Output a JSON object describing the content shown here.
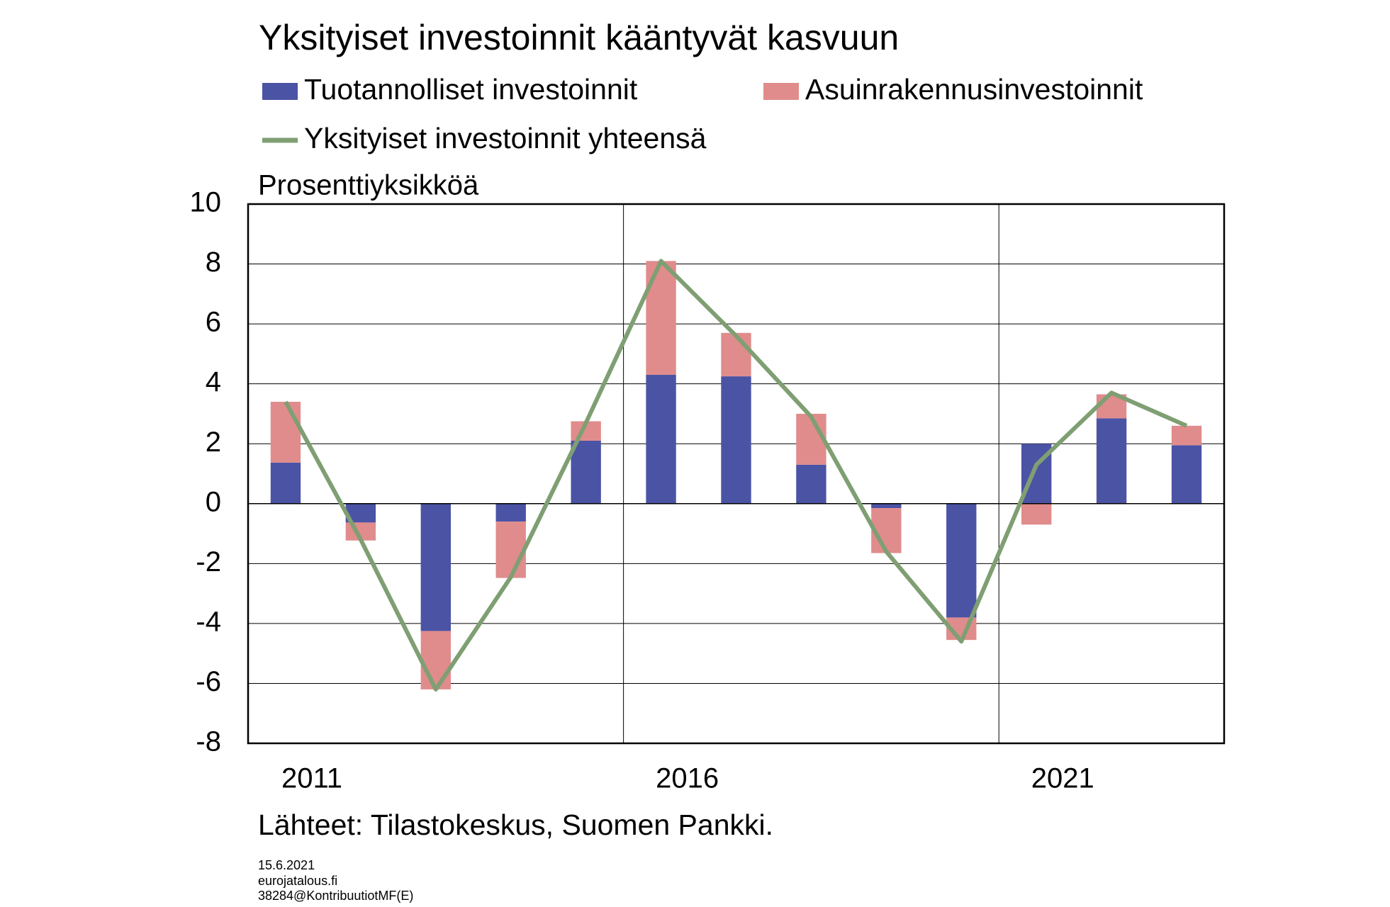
{
  "chart_data": {
    "type": "bar",
    "stacked": true,
    "title": "Yksityiset investoinnit kääntyvät kasvuun",
    "y_label": "Prosenttiyksikköä",
    "categories": [
      "2011",
      null,
      null,
      null,
      null,
      "2016",
      null,
      null,
      null,
      null,
      "2021",
      null,
      null
    ],
    "series": [
      {
        "name": "Tuotannolliset investoinnit",
        "type": "bar",
        "color": "#4b53a5",
        "values": [
          1.37,
          -0.63,
          -4.25,
          -0.6,
          2.1,
          4.3,
          4.25,
          1.3,
          -0.15,
          -3.8,
          2.0,
          2.85,
          1.95
        ]
      },
      {
        "name": "Asuinrakennusinvestoinnit",
        "type": "bar",
        "color": "#e08c8c",
        "values": [
          2.03,
          -0.6,
          -1.95,
          -1.88,
          0.65,
          3.8,
          1.45,
          1.7,
          -1.5,
          -0.75,
          -0.7,
          0.8,
          0.65
        ]
      },
      {
        "name": "Yksityiset investoinnit yhteensä",
        "type": "line",
        "color": "#7f9f73",
        "values": [
          3.4,
          -1.2,
          -6.2,
          -2.45,
          2.7,
          8.1,
          5.6,
          2.9,
          -1.6,
          -4.6,
          1.3,
          3.7,
          2.6
        ]
      }
    ],
    "ylim": [
      -8,
      10
    ],
    "yticks": [
      -8,
      -6,
      -4,
      -2,
      0,
      2,
      4,
      6,
      8,
      10
    ],
    "grid": true,
    "source": "Lähteet: Tilastokeskus, Suomen Pankki.",
    "footer": [
      "15.6.2021",
      "eurojatalous.fi",
      "38284@KontribuutiotMF(E)"
    ]
  }
}
